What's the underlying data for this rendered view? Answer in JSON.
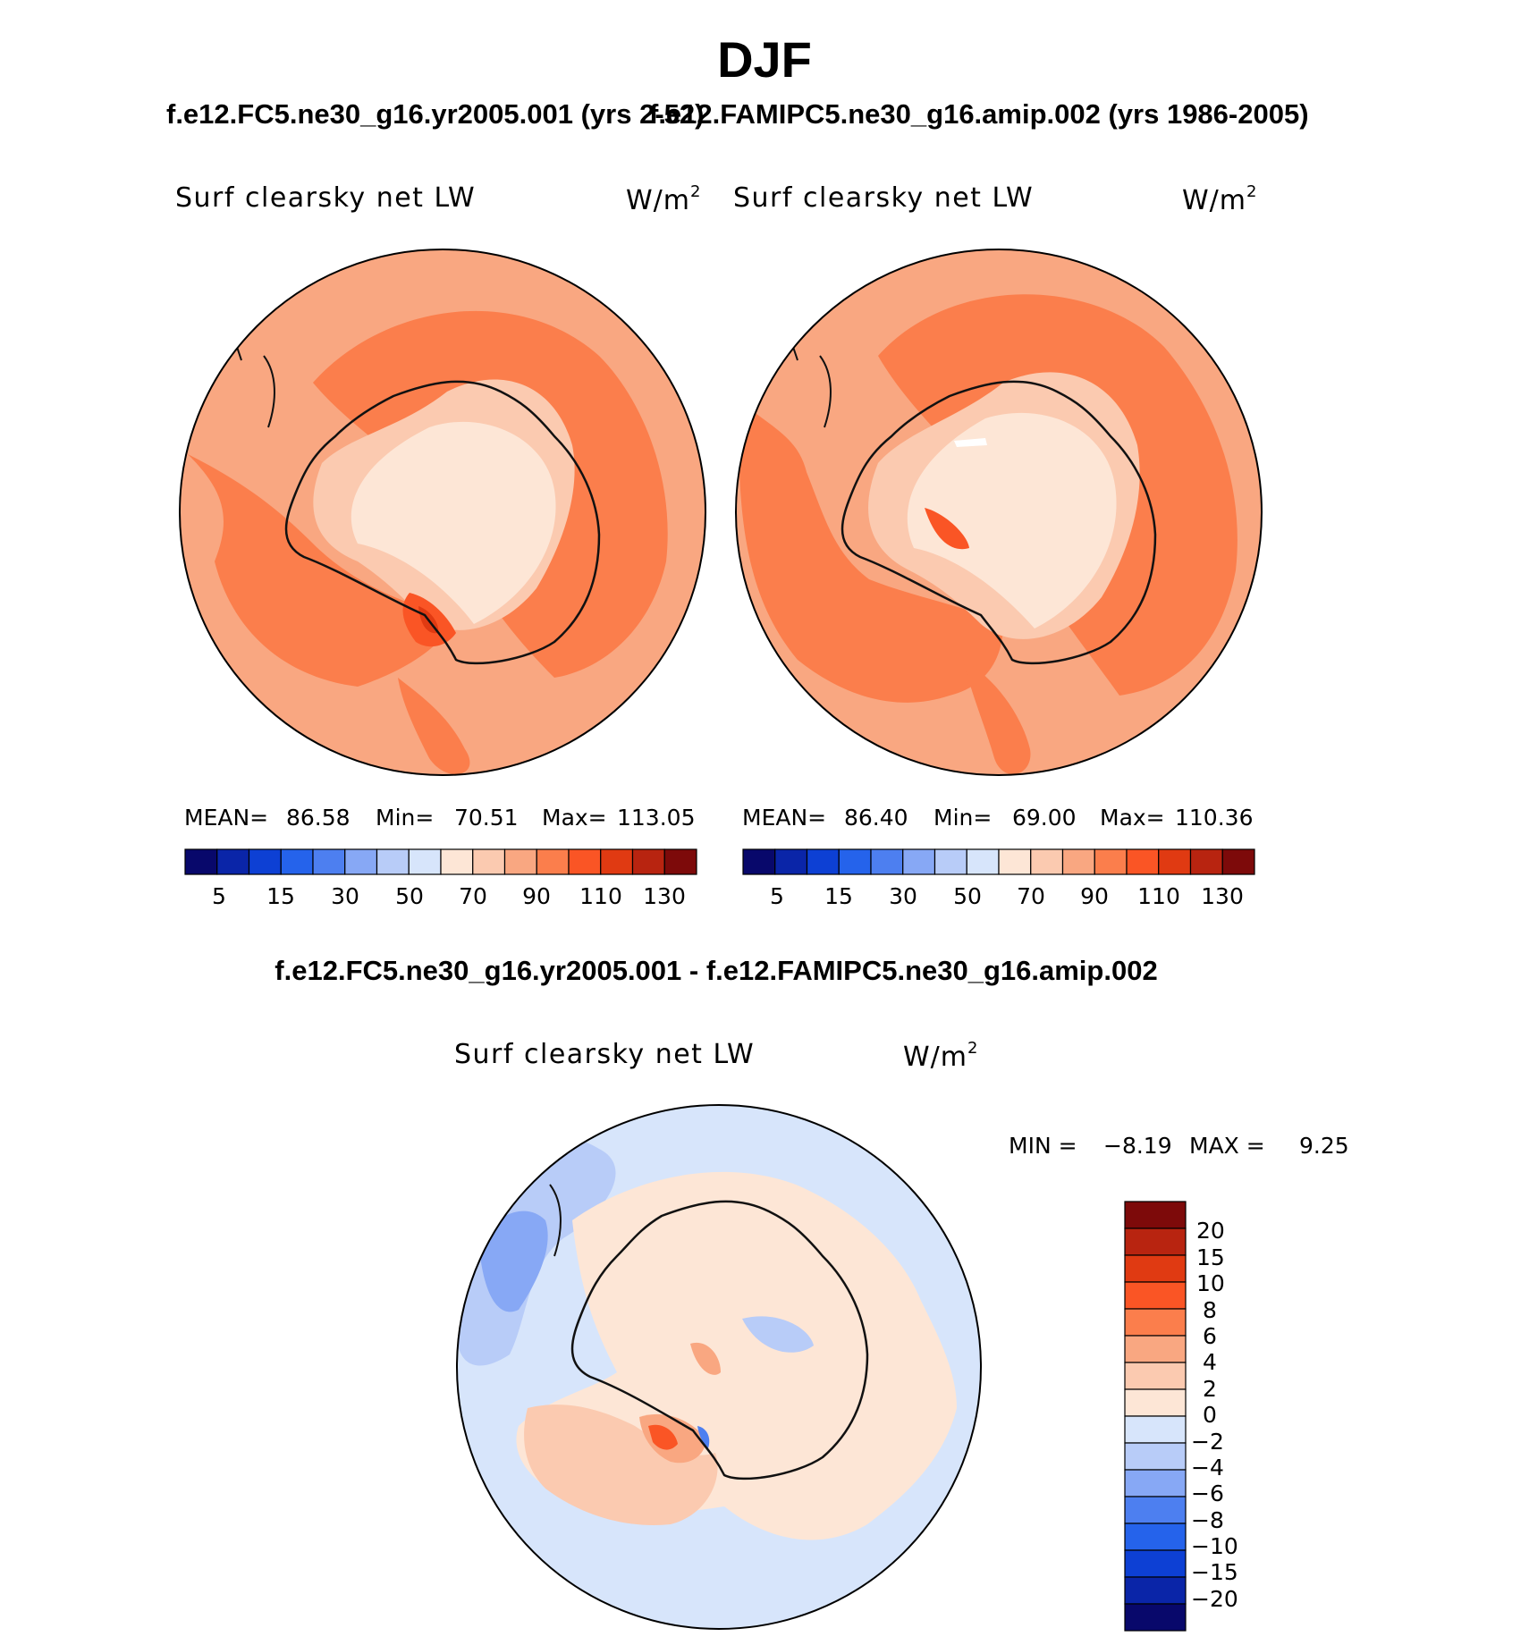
{
  "header": {
    "season": "DJF",
    "case1_title": "f.e12.FC5.ne30_g16.yr2005.001 (yrs 2-52)",
    "case2_title": "f.e12.FAMIPC5.ne30_g16.amip.002 (yrs 1986-2005)",
    "diff_title": "f.e12.FC5.ne30_g16.yr2005.001 - f.e12.FAMIPC5.ne30_g16.amip.002"
  },
  "colors": {
    "abs_levels": [
      "#08086b",
      "#0a25a8",
      "#0d40d4",
      "#2563eb",
      "#4d7ff0",
      "#87a8f5",
      "#b8ccf8",
      "#d7e5fb",
      "#fde6d6",
      "#fbcab0",
      "#f9a781",
      "#fb7e4c",
      "#fa5525",
      "#e03a12",
      "#b82410",
      "#7d0a0a"
    ],
    "diff_levels": [
      "#08086b",
      "#0a25a8",
      "#0d40d4",
      "#2563eb",
      "#4d7ff0",
      "#87a8f5",
      "#b8ccf8",
      "#d7e5fb",
      "#fde6d6",
      "#fbcab0",
      "#f9a781",
      "#fb7e4c",
      "#fa5525",
      "#e03a12",
      "#b82410",
      "#7d0a0a"
    ]
  },
  "chart_data": [
    {
      "type": "heatmap",
      "projection": "south-polar-stereographic",
      "title": "f.e12.FC5.ne30_g16.yr2005.001 (yrs 2-52)",
      "variable": "Surf clearsky net LW",
      "units": "W/m",
      "units_exp": "2",
      "mean_label": "MEAN=",
      "mean": "86.58",
      "min_label": "Min=",
      "min": "70.51",
      "max_label": "Max=",
      "max": "113.05",
      "contour_levels": [
        5,
        10,
        15,
        20,
        30,
        40,
        50,
        60,
        70,
        80,
        90,
        100,
        110,
        120,
        130
      ],
      "colorbar_labels": [
        "5",
        "15",
        "30",
        "50",
        "70",
        "90",
        "110",
        "130"
      ]
    },
    {
      "type": "heatmap",
      "projection": "south-polar-stereographic",
      "title": "f.e12.FAMIPC5.ne30_g16.amip.002 (yrs 1986-2005)",
      "variable": "Surf clearsky net LW",
      "units": "W/m",
      "units_exp": "2",
      "mean_label": "MEAN=",
      "mean": "86.40",
      "min_label": "Min=",
      "min": "69.00",
      "max_label": "Max=",
      "max": "110.36",
      "contour_levels": [
        5,
        10,
        15,
        20,
        30,
        40,
        50,
        60,
        70,
        80,
        90,
        100,
        110,
        120,
        130
      ],
      "colorbar_labels": [
        "5",
        "15",
        "30",
        "50",
        "70",
        "90",
        "110",
        "130"
      ]
    },
    {
      "type": "heatmap",
      "projection": "south-polar-stereographic",
      "title": "f.e12.FC5.ne30_g16.yr2005.001 - f.e12.FAMIPC5.ne30_g16.amip.002",
      "variable": "Surf clearsky net LW",
      "units": "W/m",
      "units_exp": "2",
      "min_label": "MIN =",
      "min": "−8.19",
      "max_label": "MAX =",
      "max": "9.25",
      "contour_levels": [
        -20,
        -15,
        -10,
        -8,
        -6,
        -4,
        -2,
        0,
        2,
        4,
        6,
        8,
        10,
        15,
        20
      ],
      "colorbar_labels": [
        "20",
        "15",
        "10",
        "8",
        "6",
        "4",
        "2",
        "0",
        "−2",
        "−4",
        "−6",
        "−8",
        "−10",
        "−15",
        "−20"
      ]
    }
  ]
}
